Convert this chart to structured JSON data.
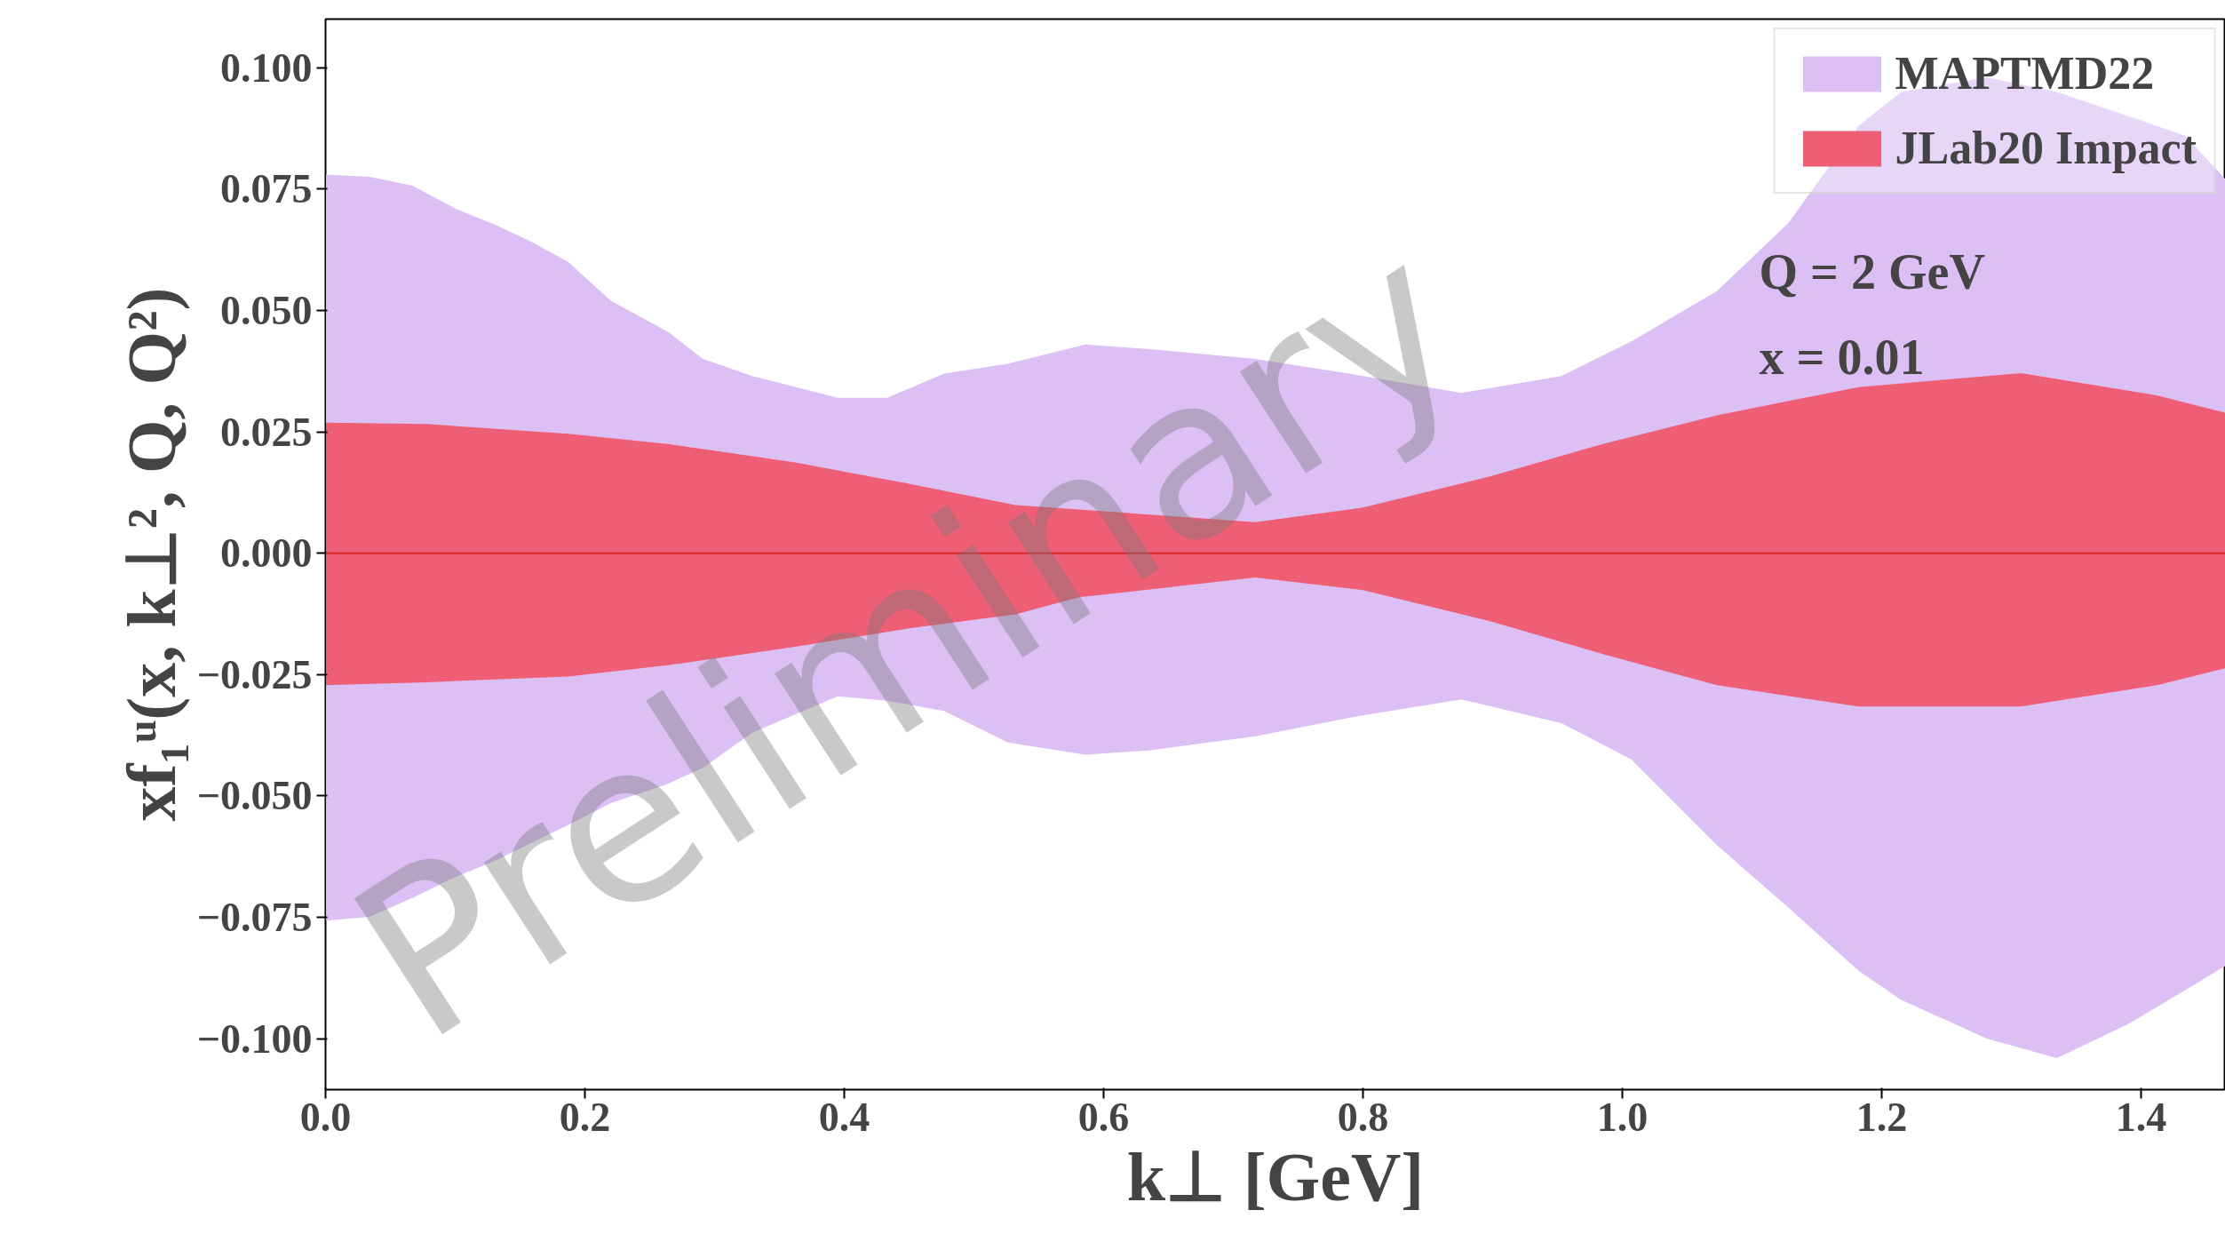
{
  "chart_data": {
    "type": "line",
    "xlabel": "k⊥ [GeV]",
    "ylabel": "xf₁ᵘ(x, k⊥², Q, Q²)",
    "series": [
      {
        "name": "MAPTMD22",
        "color": "#dcc0f5",
        "values": [
          null,
          null,
          null,
          null,
          null,
          null,
          null,
          null,
          null,
          null,
          null,
          null,
          null,
          null,
          null,
          null,
          null,
          null,
          null,
          null,
          null,
          null,
          null,
          null,
          null,
          null,
          null,
          null,
          null,
          null,
          null
        ],
        "x": [
          0,
          0.034,
          0.067,
          0.1,
          0.132,
          0.16,
          0.187,
          0.22,
          0.264,
          0.291,
          0.329,
          0.395,
          0.433,
          0.477,
          0.526,
          0.586,
          0.636,
          0.717,
          0.789,
          0.876,
          0.953,
          1.007,
          1.073,
          1.128,
          1.182,
          1.215,
          1.281,
          1.335,
          1.39,
          1.434,
          1.465
        ],
        "lower": [
          -0.0757,
          -0.0749,
          -0.071,
          -0.0667,
          -0.0632,
          -0.0595,
          -0.056,
          -0.0515,
          -0.0475,
          -0.0442,
          -0.037,
          -0.0295,
          -0.0304,
          -0.0325,
          -0.039,
          -0.0415,
          -0.0406,
          -0.0377,
          -0.0339,
          -0.0301,
          -0.035,
          -0.0425,
          -0.0602,
          -0.073,
          -0.086,
          -0.092,
          -0.1,
          -0.104,
          -0.097,
          -0.09,
          -0.085
        ],
        "upper": [
          0.078,
          0.0775,
          0.0757,
          0.071,
          0.0675,
          0.064,
          0.06,
          0.052,
          0.0456,
          0.04,
          0.0365,
          0.032,
          0.032,
          0.037,
          0.039,
          0.043,
          0.042,
          0.04,
          0.037,
          0.033,
          0.0365,
          0.0436,
          0.054,
          0.068,
          0.088,
          0.095,
          0.098,
          0.095,
          0.09,
          0.086,
          0.077
        ]
      },
      {
        "name": "JLab20 Impact",
        "color": "#ee5f75",
        "values": [
          null,
          null,
          null,
          null,
          null,
          null,
          null,
          null,
          null,
          null,
          null,
          null,
          null,
          null,
          null,
          null,
          null
        ],
        "x": [
          0,
          0.078,
          0.187,
          0.264,
          0.362,
          0.45,
          0.532,
          0.581,
          0.717,
          0.8,
          0.898,
          0.985,
          1.073,
          1.182,
          1.307,
          1.412,
          1.465
        ],
        "lower": [
          -0.0272,
          -0.0266,
          -0.0254,
          -0.0231,
          -0.0193,
          -0.0155,
          -0.0126,
          -0.0091,
          -0.005,
          -0.0076,
          -0.014,
          -0.0208,
          -0.0272,
          -0.0316,
          -0.0316,
          -0.0272,
          -0.0237
        ],
        "upper": [
          0.0269,
          0.0266,
          0.0246,
          0.0225,
          0.0187,
          0.0143,
          0.0099,
          0.009,
          0.0064,
          0.0094,
          0.0158,
          0.0225,
          0.0284,
          0.0342,
          0.0371,
          0.0325,
          0.0289
        ]
      }
    ],
    "ref_lines": [
      {
        "axis": "y",
        "value": 0,
        "color": "#d62728"
      }
    ],
    "annotations": [
      "Q = 2 GeV",
      "x = 0.01",
      "Preliminary"
    ],
    "xlim": [
      0,
      1.465
    ],
    "ylim": [
      -0.1105,
      0.11
    ],
    "xticks": [
      {
        "value": 0,
        "label": "0.0"
      },
      0.2,
      0.4,
      0.6,
      0.8,
      {
        "value": 1,
        "label": "1.0"
      },
      1.2,
      1.4
    ],
    "yticks": [
      {
        "value": -0.1,
        "label": "−0.100"
      },
      {
        "value": -0.075,
        "label": "−0.075"
      },
      {
        "value": -0.05,
        "label": "−0.050"
      },
      {
        "value": -0.025,
        "label": "−0.025"
      },
      {
        "value": 0,
        "label": "0.000"
      },
      {
        "value": 0.025,
        "label": "0.025"
      },
      {
        "value": 0.05,
        "label": "0.050"
      },
      {
        "value": 0.075,
        "label": "0.075"
      },
      {
        "value": 0.1,
        "label": "0.100"
      }
    ],
    "grid": false,
    "legend": "top right"
  }
}
